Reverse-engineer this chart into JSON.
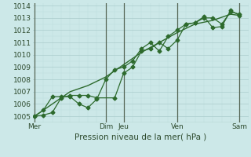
{
  "bg_color": "#cce8e8",
  "grid_major_color": "#aacccc",
  "grid_minor_color": "#bbdddd",
  "line_color": "#2d6a2d",
  "marker_color": "#2d6a2d",
  "xlabel": "Pression niveau de la mer( hPa )",
  "ylim": [
    1004.5,
    1014.2
  ],
  "yticks": [
    1005,
    1006,
    1007,
    1008,
    1009,
    1010,
    1011,
    1012,
    1013,
    1014
  ],
  "x_day_labels": [
    "Mer",
    "Dim",
    "Jeu",
    "Ven",
    "Sam"
  ],
  "x_day_positions": [
    0,
    4,
    5,
    8,
    11.5
  ],
  "xlim": [
    -0.1,
    12.0
  ],
  "series1_x": [
    0,
    0.5,
    1.0,
    1.5,
    2.0,
    2.5,
    3.0,
    3.5,
    4.5,
    5.0,
    5.5,
    6.0,
    6.5,
    7.0,
    7.5,
    8.0,
    8.5,
    9.0,
    9.5,
    10.0,
    10.5,
    11.0,
    11.5
  ],
  "series1_y": [
    1005.0,
    1005.1,
    1005.3,
    1006.5,
    1006.7,
    1006.7,
    1006.7,
    1006.5,
    1006.5,
    1008.5,
    1009.0,
    1010.3,
    1010.5,
    1011.0,
    1010.5,
    1011.2,
    1012.5,
    1012.6,
    1013.0,
    1013.0,
    1012.5,
    1013.5,
    1013.3
  ],
  "series2_x": [
    0,
    0.5,
    1.0,
    1.5,
    2.0,
    2.5,
    3.0,
    3.5,
    4.0,
    4.5,
    5.0,
    5.5,
    6.0,
    6.5,
    7.0,
    7.5,
    8.0,
    8.5,
    9.0,
    9.5,
    10.0,
    10.5,
    11.0,
    11.5
  ],
  "series2_y": [
    1005.0,
    1005.5,
    1006.6,
    1006.6,
    1006.6,
    1006.0,
    1005.7,
    1006.4,
    1008.0,
    1008.8,
    1009.0,
    1009.5,
    1010.5,
    1011.0,
    1010.3,
    1011.5,
    1012.0,
    1012.5,
    1012.6,
    1013.1,
    1012.2,
    1012.3,
    1013.6,
    1013.2
  ],
  "series3_x": [
    0,
    1.0,
    2.0,
    3.0,
    4.0,
    5.0,
    6.0,
    7.0,
    8.0,
    9.0,
    10.0,
    11.0,
    11.5
  ],
  "series3_y": [
    1005.0,
    1006.0,
    1007.0,
    1007.5,
    1008.2,
    1009.2,
    1010.2,
    1011.0,
    1011.8,
    1012.5,
    1012.8,
    1013.3,
    1013.2
  ]
}
